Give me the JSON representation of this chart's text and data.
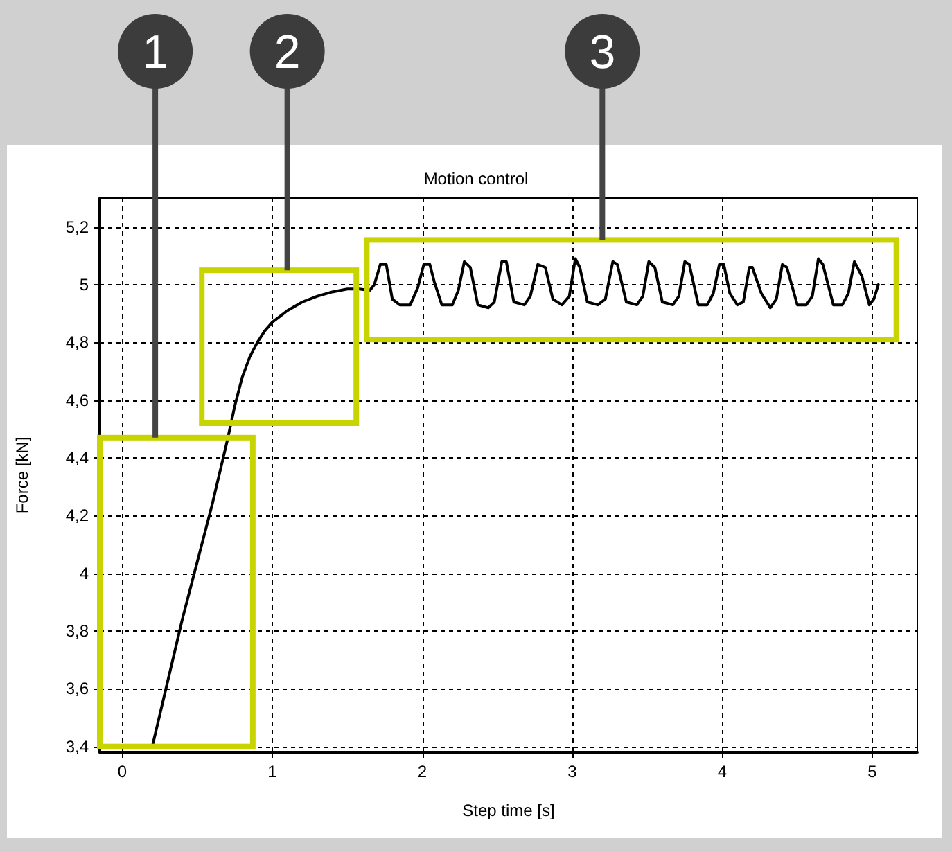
{
  "chart_data": {
    "type": "line",
    "title": "Motion control",
    "xlabel": "Step time [s]",
    "ylabel": "Force [kN]",
    "annotations": [
      "1",
      "2",
      "3"
    ],
    "series": [
      {
        "color": "#000000",
        "x": [
          0.2,
          0.3,
          0.4,
          0.5,
          0.6,
          0.7,
          0.75,
          0.8,
          0.85,
          0.9,
          0.95,
          1.0,
          1.05,
          1.1,
          1.2,
          1.3,
          1.4,
          1.5,
          1.58,
          1.65,
          1.68,
          1.72,
          1.76,
          1.8,
          1.85,
          1.92,
          1.97,
          2.01,
          2.05,
          2.08,
          2.13,
          2.2,
          2.24,
          2.28,
          2.32,
          2.37,
          2.44,
          2.48,
          2.53,
          2.56,
          2.61,
          2.68,
          2.72,
          2.77,
          2.82,
          2.87,
          2.93,
          2.98,
          3.02,
          3.05,
          3.1,
          3.17,
          3.22,
          3.27,
          3.3,
          3.36,
          3.43,
          3.47,
          3.51,
          3.55,
          3.6,
          3.67,
          3.71,
          3.75,
          3.78,
          3.84,
          3.9,
          3.94,
          3.98,
          4.01,
          4.05,
          4.1,
          4.14,
          4.18,
          4.2,
          4.26,
          4.32,
          4.36,
          4.4,
          4.43,
          4.5,
          4.56,
          4.6,
          4.64,
          4.67,
          4.74,
          4.8,
          4.84,
          4.88,
          4.93,
          4.98,
          5.01,
          5.04
        ],
        "values": [
          3.4,
          3.62,
          3.84,
          4.04,
          4.24,
          4.46,
          4.58,
          4.68,
          4.75,
          4.8,
          4.84,
          4.87,
          4.89,
          4.91,
          4.94,
          4.96,
          4.975,
          4.985,
          4.985,
          4.98,
          5.0,
          5.07,
          5.07,
          4.95,
          4.93,
          4.93,
          4.99,
          5.07,
          5.07,
          5.01,
          4.93,
          4.93,
          4.98,
          5.08,
          5.06,
          4.93,
          4.92,
          4.94,
          5.08,
          5.08,
          4.94,
          4.93,
          4.96,
          5.07,
          5.06,
          4.95,
          4.93,
          4.96,
          5.09,
          5.06,
          4.94,
          4.93,
          4.95,
          5.08,
          5.07,
          4.94,
          4.93,
          4.96,
          5.08,
          5.06,
          4.94,
          4.93,
          4.96,
          5.08,
          5.07,
          4.93,
          4.93,
          4.97,
          5.07,
          5.07,
          4.97,
          4.93,
          4.94,
          5.06,
          5.06,
          4.97,
          4.92,
          4.95,
          5.07,
          5.06,
          4.93,
          4.93,
          4.96,
          5.09,
          5.07,
          4.93,
          4.93,
          4.97,
          5.08,
          5.03,
          4.93,
          4.95,
          5.0
        ]
      }
    ],
    "xlim": [
      -0.15,
      5.3
    ],
    "xticks": [
      0,
      1,
      2,
      3,
      4,
      5
    ],
    "ylim": [
      3.38,
      5.3
    ],
    "yticks": [
      {
        "value": 3.4,
        "label": "3,4"
      },
      {
        "value": 3.6,
        "label": "3,6"
      },
      {
        "value": 3.8,
        "label": "3,8"
      },
      {
        "value": 4,
        "label": "4"
      },
      {
        "value": 4.2,
        "label": "4,2"
      },
      {
        "value": 4.4,
        "label": "4,4"
      },
      {
        "value": 4.6,
        "label": "4,6"
      },
      {
        "value": 4.8,
        "label": "4,8"
      },
      {
        "value": 5,
        "label": "5"
      },
      {
        "value": 5.2,
        "label": "5,2"
      }
    ],
    "grid": true,
    "marker": "none",
    "line_style": "solid"
  }
}
